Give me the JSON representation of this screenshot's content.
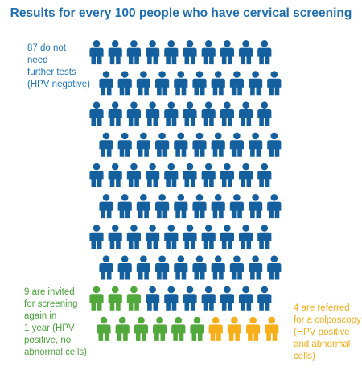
{
  "title": "Results for every 100 people who have cervical screening",
  "groups": [
    {
      "id": "hpv-negative",
      "count": 87,
      "color": "#14609f",
      "label": "87 do not\nneed\nfurther tests\n(HPV negative)"
    },
    {
      "id": "hpv-positive-no-abnormal",
      "count": 9,
      "color": "#52a93b",
      "label": "9 are invited\nfor screening\nagain  in\n1 year (HPV\npositive, no\nabnormal cells)"
    },
    {
      "id": "colposcopy",
      "count": 4,
      "color": "#f6af1a",
      "label": "4 are referred\nfor a colposcopy\n(HPV positive\nand abnormal\ncells)"
    }
  ],
  "icon": "person-icon"
}
